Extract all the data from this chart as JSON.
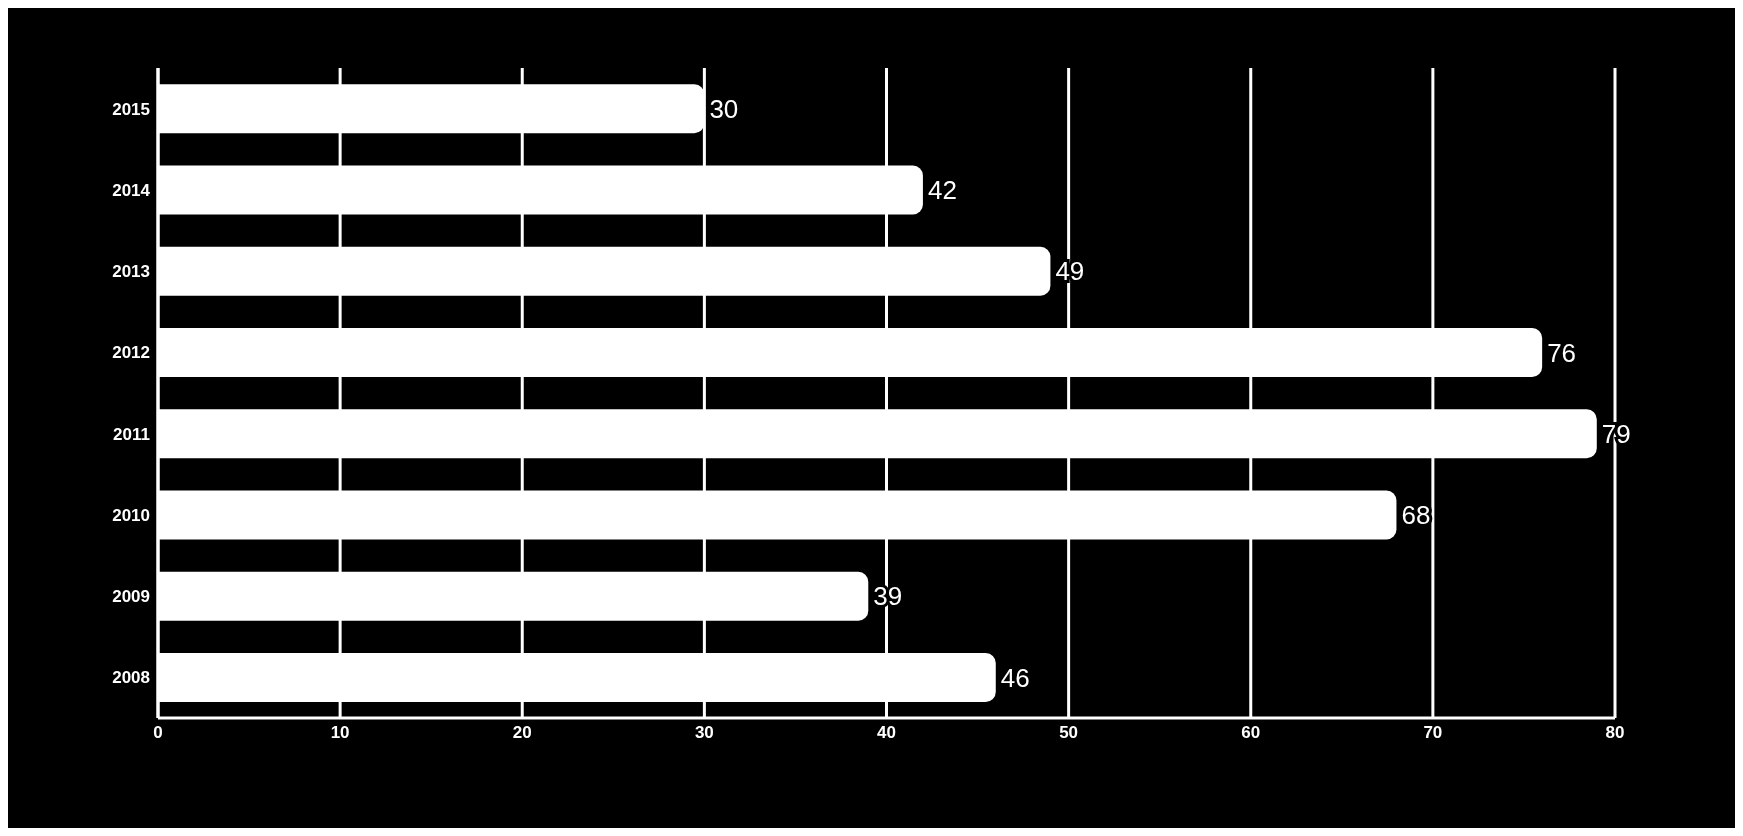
{
  "chart_data": {
    "type": "bar",
    "orientation": "horizontal",
    "categories": [
      "2015",
      "2014",
      "2013",
      "2012",
      "2011",
      "2010",
      "2009",
      "2008"
    ],
    "values": [
      30,
      42,
      49,
      76,
      79,
      68,
      39,
      46
    ],
    "color": "#ffffff",
    "xlim": [
      0,
      80
    ],
    "xticks": [
      0,
      10,
      20,
      30,
      40,
      50,
      60,
      70,
      80
    ],
    "grid": "x",
    "legend": false,
    "data_labels": true
  }
}
